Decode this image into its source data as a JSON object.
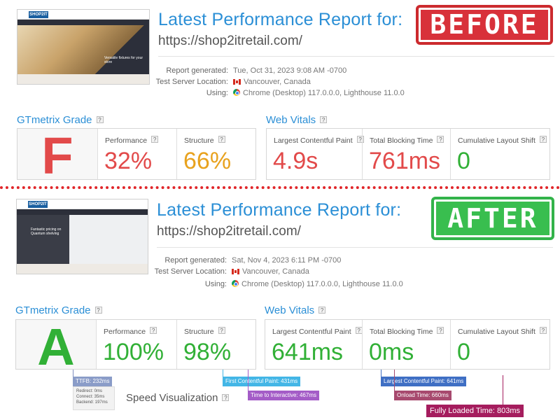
{
  "stamps": {
    "before": "BEFORE",
    "after": "AFTER"
  },
  "colors": {
    "accent_blue": "#2b8fd6",
    "bad_red": "#e24a4a",
    "warn_orange": "#e8a21e",
    "good_green": "#31b036",
    "stamp_red": "#d8313a",
    "stamp_green": "#39be4f"
  },
  "before": {
    "thumbnail": {
      "logo": "SHOP2IT",
      "caption": "Versatile fixtures for your store"
    },
    "title": "Latest Performance Report for:",
    "url": "https://shop2itretail.com/",
    "meta": {
      "generated_label": "Report generated:",
      "generated_value": "Tue, Oct 31, 2023 9:08 AM -0700",
      "location_label": "Test Server Location:",
      "location_value": "Vancouver, Canada",
      "using_label": "Using:",
      "using_value": "Chrome (Desktop) 117.0.0.0, Lighthouse 11.0.0"
    },
    "grade_section": {
      "title": "GTmetrix Grade",
      "help": "?",
      "grade": "F",
      "performance_label": "Performance",
      "performance_value": "32%",
      "structure_label": "Structure",
      "structure_value": "66%"
    },
    "vitals_section": {
      "title": "Web Vitals",
      "help": "?",
      "lcp_label": "Largest Contentful Paint",
      "lcp_value": "4.9s",
      "tbt_label": "Total Blocking Time",
      "tbt_value": "761ms",
      "cls_label": "Cumulative Layout Shift",
      "cls_value": "0"
    }
  },
  "after": {
    "thumbnail": {
      "logo": "SHOP2IT",
      "caption": "Fantastic pricing on Quantum shelving"
    },
    "title": "Latest Performance Report for:",
    "url": "https://shop2itretail.com/",
    "meta": {
      "generated_label": "Report generated:",
      "generated_value": "Sat, Nov 4, 2023 6:11 PM -0700",
      "location_label": "Test Server Location:",
      "location_value": "Vancouver, Canada",
      "using_label": "Using:",
      "using_value": "Chrome (Desktop) 117.0.0.0, Lighthouse 11.0.0"
    },
    "grade_section": {
      "title": "GTmetrix Grade",
      "help": "?",
      "grade": "A",
      "performance_label": "Performance",
      "performance_value": "100%",
      "structure_label": "Structure",
      "structure_value": "98%"
    },
    "vitals_section": {
      "title": "Web Vitals",
      "help": "?",
      "lcp_label": "Largest Contentful Paint",
      "lcp_value": "641ms",
      "tbt_label": "Total Blocking Time",
      "tbt_value": "0ms",
      "cls_label": "Cumulative Layout Shift",
      "cls_value": "0"
    },
    "timeline": {
      "ttfb": "TTFB: 232ms",
      "redirect": "Redirect: 0ms",
      "connect": "Connect: 35ms",
      "backend": "Backend: 197ms",
      "fcp": "First Contentful Paint: 431ms",
      "tti": "Time to Interactive: 467ms",
      "lcp": "Largest Contentful Paint: 641ms",
      "onload": "Onload Time: 660ms",
      "fully_loaded": "Fully Loaded Time: 803ms",
      "speed_title": "Speed Visualization",
      "speed_help": "?"
    }
  }
}
